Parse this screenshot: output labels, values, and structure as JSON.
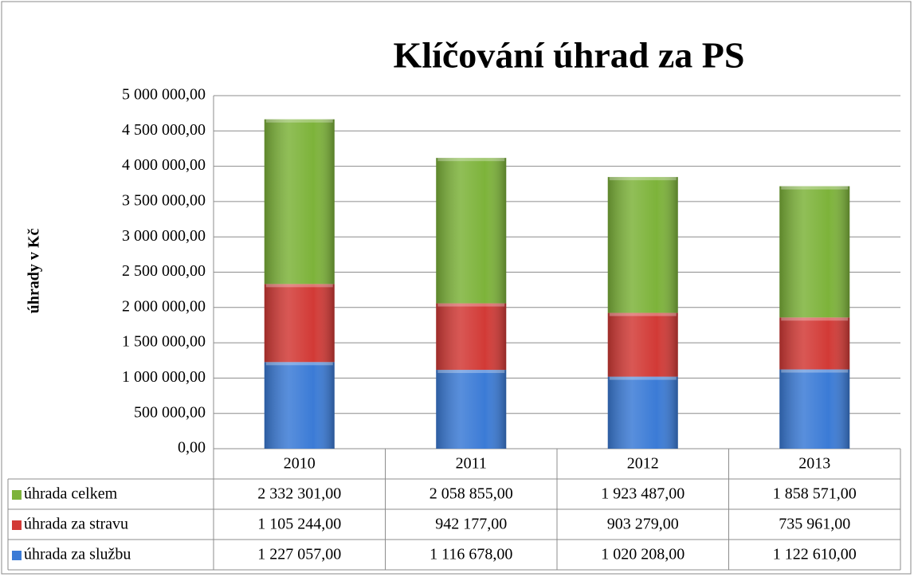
{
  "chart_data": {
    "type": "stacked-bar",
    "title": "Klíčování úhrad za PS",
    "y_label": "úhrady v Kč",
    "categories": [
      "2010",
      "2011",
      "2012",
      "2013"
    ],
    "series": [
      {
        "name": "úhrada za službu",
        "color": "#3b7bd6",
        "values": [
          1227057,
          1116678,
          1020208,
          1122610
        ],
        "value_labels": [
          "1 227 057,00",
          "1 116 678,00",
          "1 020 208,00",
          "1 122 610,00"
        ]
      },
      {
        "name": "úhrada za stravu",
        "color": "#d23a36",
        "values": [
          1105244,
          942177,
          903279,
          735961
        ],
        "value_labels": [
          "1 105 244,00",
          "942 177,00",
          "903 279,00",
          "735 961,00"
        ]
      },
      {
        "name": "úhrada celkem",
        "color": "#7db33a",
        "values": [
          2332301,
          2058855,
          1923487,
          1858571
        ],
        "value_labels": [
          "2 332 301,00",
          "2 058 855,00",
          "1 923 487,00",
          "1 858 571,00"
        ]
      }
    ],
    "ylim": [
      0,
      5000000
    ],
    "yticks": [
      {
        "value": 0,
        "label": "0,00"
      },
      {
        "value": 500000,
        "label": "500 000,00"
      },
      {
        "value": 1000000,
        "label": "1 000 000,00"
      },
      {
        "value": 1500000,
        "label": "1 500 000,00"
      },
      {
        "value": 2000000,
        "label": "2 000 000,00"
      },
      {
        "value": 2500000,
        "label": "2 500 000,00"
      },
      {
        "value": 3000000,
        "label": "3 000 000,00"
      },
      {
        "value": 3500000,
        "label": "3 500 000,00"
      },
      {
        "value": 4000000,
        "label": "4 000 000,00"
      },
      {
        "value": 4500000,
        "label": "4 500 000,00"
      },
      {
        "value": 5000000,
        "label": "5 000 000,00"
      }
    ],
    "grid": true
  }
}
